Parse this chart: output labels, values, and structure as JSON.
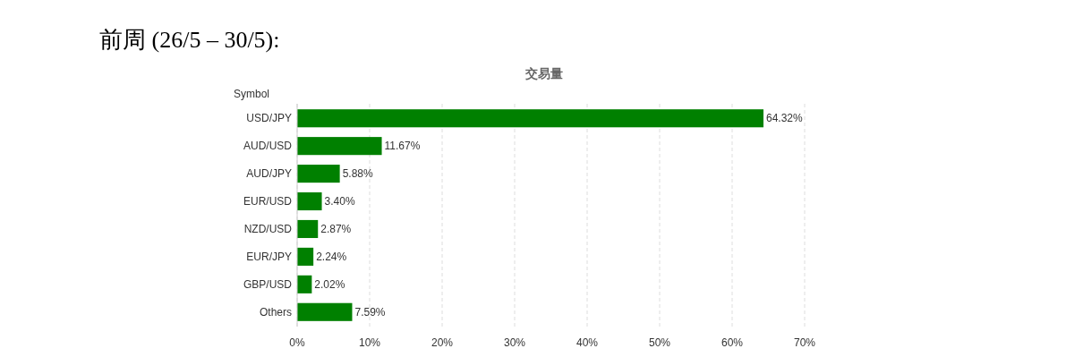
{
  "chart_data": {
    "type": "bar",
    "orientation": "horizontal",
    "title": "前周 (26/5 – 30/5):",
    "subtitle": "交易量",
    "ylabel": "Symbol",
    "categories": [
      "USD/JPY",
      "AUD/USD",
      "AUD/JPY",
      "EUR/USD",
      "NZD/USD",
      "EUR/JPY",
      "GBP/USD",
      "Others"
    ],
    "values": [
      64.32,
      11.67,
      5.88,
      3.4,
      2.87,
      2.24,
      2.02,
      7.59
    ],
    "value_labels": [
      "64.32%",
      "11.67%",
      "5.88%",
      "3.40%",
      "2.87%",
      "2.24%",
      "2.02%",
      "7.59%"
    ],
    "color": "#008000",
    "xlim": [
      0,
      70
    ],
    "xticks": [
      {
        "value": 0,
        "label": "0%"
      },
      {
        "value": 10,
        "label": "10%"
      },
      {
        "value": 20,
        "label": "20%"
      },
      {
        "value": 30,
        "label": "30%"
      },
      {
        "value": 40,
        "label": "40%"
      },
      {
        "value": 50,
        "label": "50%"
      },
      {
        "value": 60,
        "label": "60%"
      },
      {
        "value": 70,
        "label": "70%"
      }
    ],
    "grid": "x"
  }
}
